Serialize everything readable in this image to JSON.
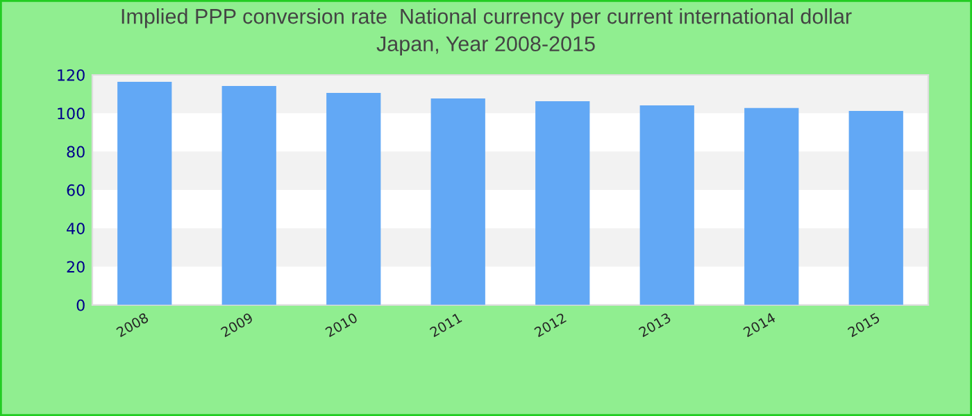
{
  "chart_data": {
    "type": "bar",
    "title": "Implied PPP conversion rate  National currency per current international dollar\nJapan, Year 2008-2015",
    "categories": [
      "2008",
      "2009",
      "2010",
      "2011",
      "2012",
      "2013",
      "2014",
      "2015"
    ],
    "values": [
      116.4,
      114.2,
      110.6,
      107.7,
      106.3,
      104.1,
      102.7,
      101.2
    ],
    "color": "#62a8f5",
    "ylim": [
      0,
      120
    ],
    "yticks": [
      0,
      20,
      40,
      60,
      80,
      100,
      120
    ],
    "bands": [
      {
        "axis": "y",
        "from": 20,
        "to": 40,
        "color": "#f2f2f2"
      },
      {
        "axis": "y",
        "from": 60,
        "to": 80,
        "color": "#f2f2f2"
      },
      {
        "axis": "y",
        "from": 100,
        "to": 120,
        "color": "#f2f2f2"
      }
    ]
  }
}
